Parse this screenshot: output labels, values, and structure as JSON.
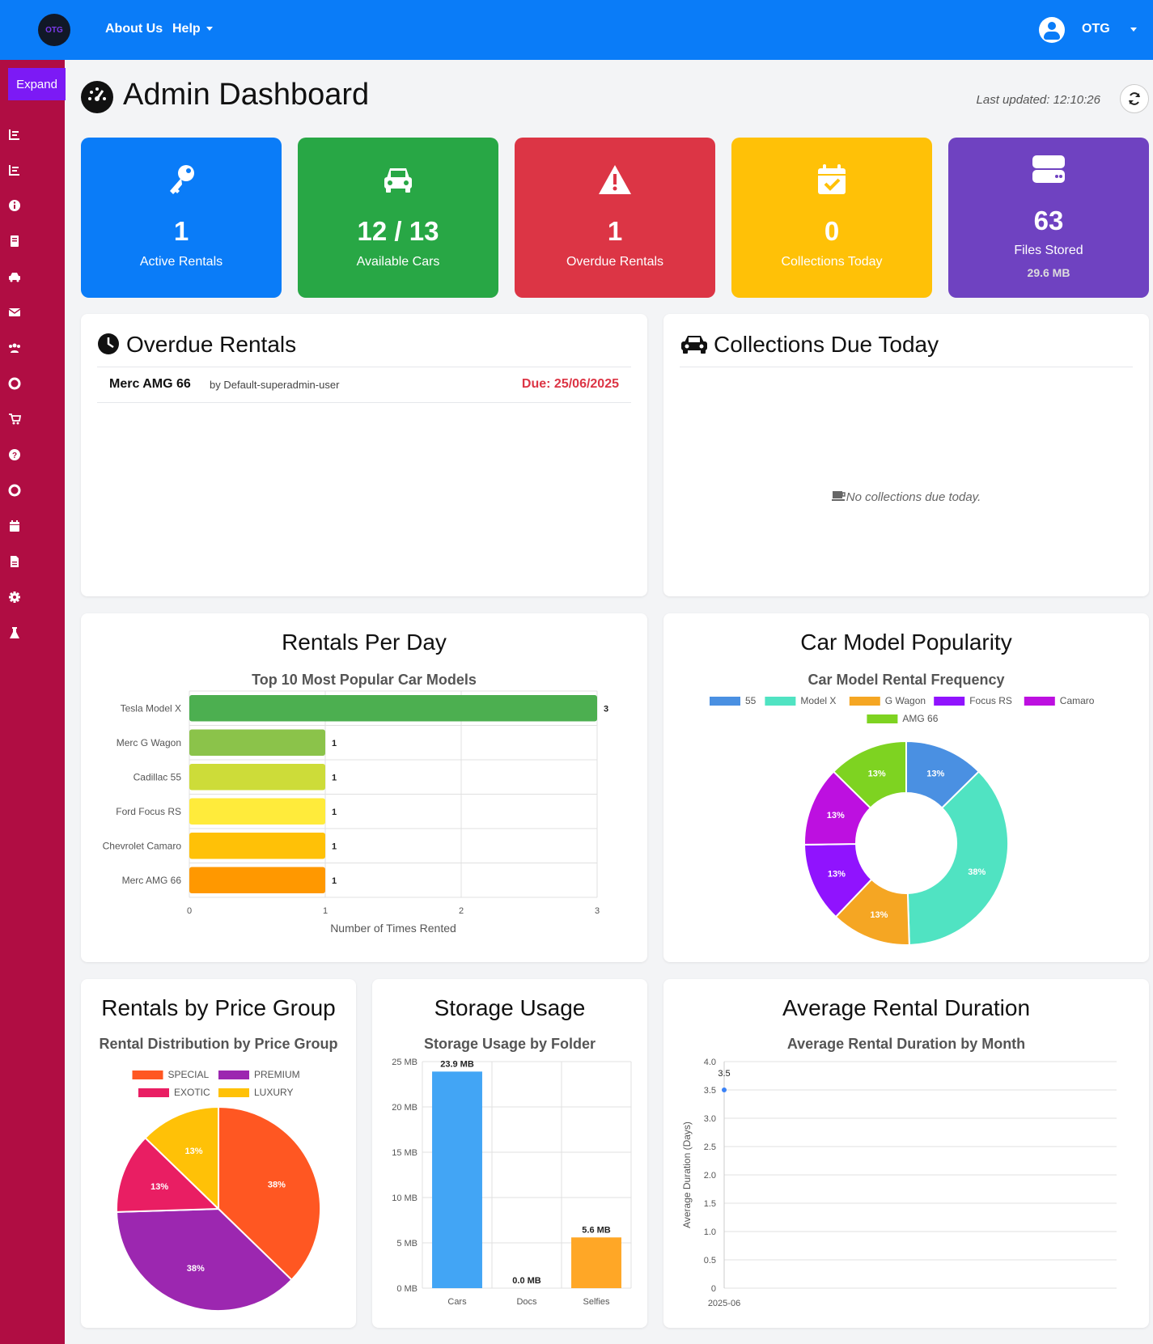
{
  "nav": {
    "logo": "OTG",
    "links": [
      "About Us",
      "Help"
    ],
    "user": "OTG"
  },
  "sidebar": {
    "expand_label": "Expand",
    "icons": [
      "chart-icon",
      "chart-icon",
      "info-icon",
      "book-icon",
      "car-icon",
      "mail-icon",
      "users-icon",
      "lifebuoy-icon",
      "cart-icon",
      "question-icon",
      "lifebuoy-icon",
      "calendar-icon",
      "file-icon",
      "gear-icon",
      "flask-icon"
    ]
  },
  "header": {
    "title": "Admin Dashboard",
    "last_updated": "Last updated: 12:10:26"
  },
  "stats": [
    {
      "value": "1",
      "label": "Active Rentals",
      "color": "#0a7cf8",
      "icon": "key-icon"
    },
    {
      "value": "12 / 13",
      "label": "Available Cars",
      "color": "#28a745",
      "icon": "car-icon"
    },
    {
      "value": "1",
      "label": "Overdue Rentals",
      "color": "#dc3545",
      "icon": "warning-icon"
    },
    {
      "value": "0",
      "label": "Collections Today",
      "color": "#ffc107",
      "icon": "calendar-check-icon"
    },
    {
      "value": "63",
      "label": "Files Stored",
      "sub": "29.6 MB",
      "color": "#6f42c1",
      "icon": "storage-icon"
    }
  ],
  "overdue": {
    "title": "Overdue Rentals",
    "items": [
      {
        "car": "Merc AMG 66",
        "by": "by Default-superadmin-user",
        "due": "Due: 25/06/2025"
      }
    ]
  },
  "collections": {
    "title": "Collections Due Today",
    "empty": "No collections due today."
  },
  "rentals_per_day": {
    "title": "Rentals Per Day",
    "subtitle": "Top 10 Most Popular Car Models"
  },
  "car_popularity": {
    "title": "Car Model Popularity",
    "subtitle": "Car Model Rental Frequency"
  },
  "price_group": {
    "title": "Rentals by Price Group",
    "subtitle": "Rental Distribution by Price Group"
  },
  "storage": {
    "title": "Storage Usage",
    "subtitle": "Storage Usage by Folder"
  },
  "duration": {
    "title": "Average Rental Duration",
    "subtitle": "Average Rental Duration by Month"
  },
  "chart_data": [
    {
      "type": "bar",
      "orientation": "horizontal",
      "categories": [
        "Tesla Model X",
        "Merc G Wagon",
        "Cadillac 55",
        "Ford Focus RS",
        "Chevrolet  Camaro",
        "Merc AMG 66"
      ],
      "values": [
        3,
        1,
        1,
        1,
        1,
        1
      ],
      "colors": [
        "#4caf50",
        "#8bc34a",
        "#cddc39",
        "#ffeb3b",
        "#ffc107",
        "#ff9800"
      ],
      "xlabel": "Number of Times Rented",
      "xlim": [
        0,
        3
      ],
      "ticks": [
        "0",
        "1",
        "2",
        "3"
      ]
    },
    {
      "type": "pie",
      "donut": true,
      "labels": [
        "55",
        "Model X",
        "G Wagon",
        "Focus RS",
        "Camaro",
        "AMG 66"
      ],
      "values": [
        13,
        38,
        13,
        13,
        13,
        13
      ],
      "colors": [
        "#4a90e2",
        "#50e3c2",
        "#f5a623",
        "#9013fe",
        "#bd10e0",
        "#7ed321"
      ],
      "legend": "top"
    },
    {
      "type": "pie",
      "labels": [
        "SPECIAL",
        "PREMIUM",
        "EXOTIC",
        "LUXURY"
      ],
      "values": [
        38,
        38,
        13,
        13
      ],
      "colors": [
        "#ff5722",
        "#9c27b0",
        "#e91e63",
        "#ffc107"
      ],
      "legend": "top"
    },
    {
      "type": "bar",
      "categories": [
        "Cars",
        "Docs",
        "Selfies"
      ],
      "values": [
        23.9,
        0.0,
        5.6
      ],
      "value_labels": [
        "23.9 MB",
        "0.0 MB",
        "5.6 MB"
      ],
      "colors": [
        "#42a5f5",
        "#ab47bc",
        "#ffa726"
      ],
      "ylim": [
        0,
        25
      ],
      "yticks": [
        "0 MB",
        "5 MB",
        "10 MB",
        "15 MB",
        "20 MB",
        "25 MB"
      ]
    },
    {
      "type": "scatter",
      "x": [
        "2025-06"
      ],
      "values": [
        3.5
      ],
      "ylabel": "Average Duration (Days)",
      "ylim": [
        0,
        4
      ],
      "yticks": [
        "0",
        "0.5",
        "1.0",
        "1.5",
        "2.0",
        "2.5",
        "3.0",
        "3.5",
        "4.0"
      ]
    }
  ]
}
